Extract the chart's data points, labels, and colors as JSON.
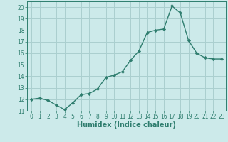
{
  "x": [
    0,
    1,
    2,
    3,
    4,
    5,
    6,
    7,
    8,
    9,
    10,
    11,
    12,
    13,
    14,
    15,
    16,
    17,
    18,
    19,
    20,
    21,
    22,
    23
  ],
  "y": [
    12.0,
    12.1,
    11.9,
    11.5,
    11.1,
    11.7,
    12.4,
    12.5,
    12.9,
    13.9,
    14.1,
    14.4,
    15.4,
    16.2,
    17.8,
    18.0,
    18.1,
    20.1,
    19.5,
    17.1,
    16.0,
    15.6,
    15.5,
    15.5
  ],
  "line_color": "#2e7d6e",
  "marker": "D",
  "marker_size": 2.2,
  "bg_color": "#cceaea",
  "grid_color": "#aacfcf",
  "xlabel": "Humidex (Indice chaleur)",
  "ylim": [
    11,
    20.5
  ],
  "xlim": [
    -0.5,
    23.5
  ],
  "yticks": [
    11,
    12,
    13,
    14,
    15,
    16,
    17,
    18,
    19,
    20
  ],
  "xticks": [
    0,
    1,
    2,
    3,
    4,
    5,
    6,
    7,
    8,
    9,
    10,
    11,
    12,
    13,
    14,
    15,
    16,
    17,
    18,
    19,
    20,
    21,
    22,
    23
  ],
  "font_color": "#2e7d6e",
  "tick_fontsize": 5.5,
  "xlabel_fontsize": 7.0
}
